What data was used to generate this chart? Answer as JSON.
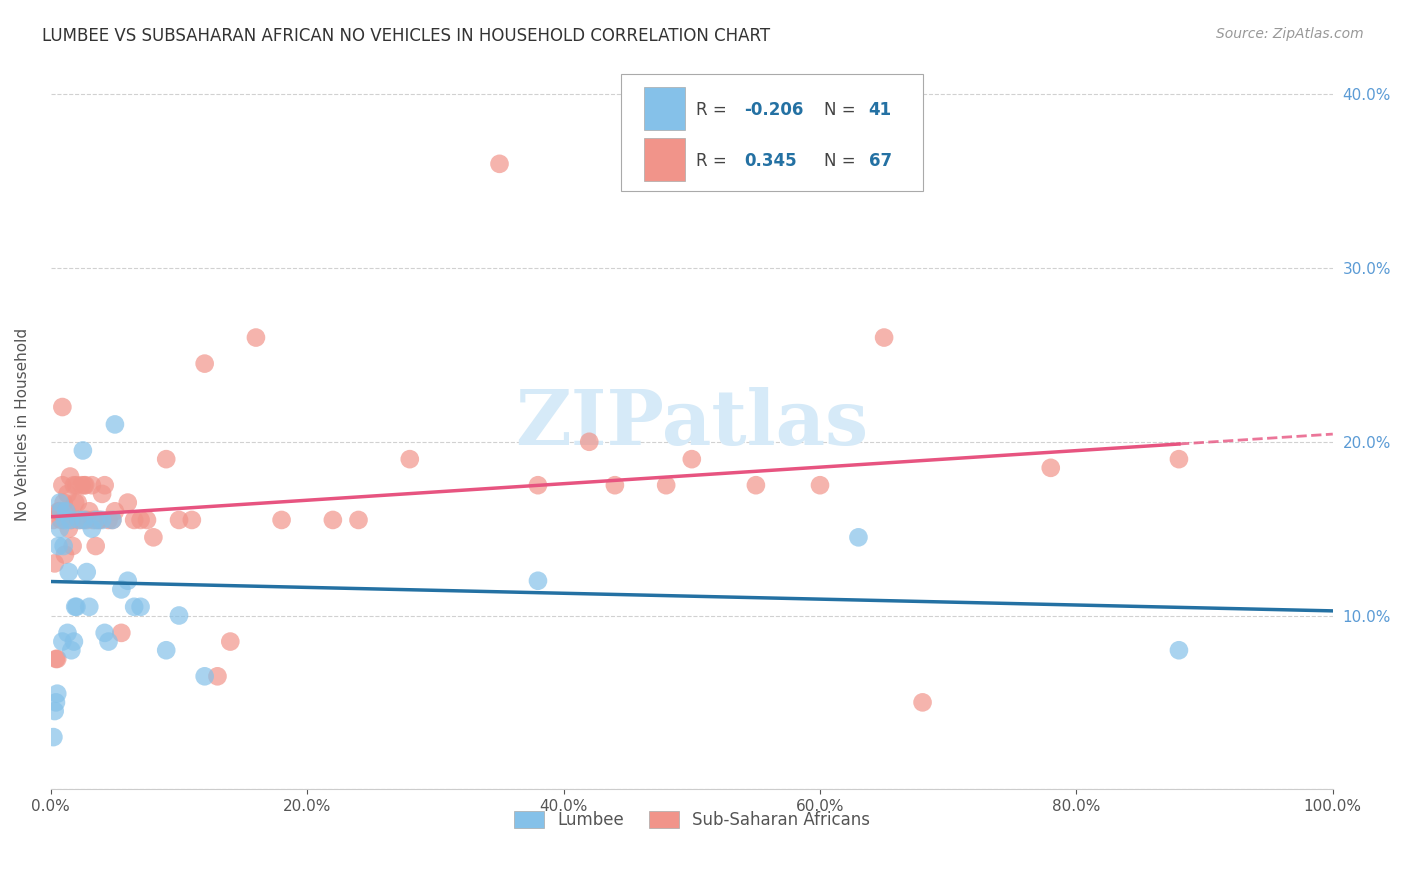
{
  "title": "LUMBEE VS SUBSAHARAN AFRICAN NO VEHICLES IN HOUSEHOLD CORRELATION CHART",
  "source": "Source: ZipAtlas.com",
  "ylabel": "No Vehicles in Household",
  "xlim": [
    0,
    1.0
  ],
  "ylim": [
    0,
    0.42
  ],
  "xticks": [
    0.0,
    0.2,
    0.4,
    0.6,
    0.8,
    1.0
  ],
  "yticks": [
    0.0,
    0.1,
    0.2,
    0.3,
    0.4
  ],
  "xtick_labels": [
    "0.0%",
    "20.0%",
    "40.0%",
    "60.0%",
    "80.0%",
    "100.0%"
  ],
  "ytick_labels_right": [
    "",
    "10.0%",
    "20.0%",
    "30.0%",
    "40.0%"
  ],
  "lumbee_color": "#85C1E9",
  "subsaharan_color": "#F1948A",
  "lumbee_line_color": "#2471A3",
  "subsaharan_line_color": "#E75480",
  "lumbee_R": -0.206,
  "lumbee_N": 41,
  "subsaharan_R": 0.345,
  "subsaharan_N": 67,
  "watermark": "ZIPatlas",
  "watermark_color": "#D6EAF8",
  "legend_label_1": "Lumbee",
  "legend_label_2": "Sub-Saharan Africans",
  "lumbee_x": [
    0.002,
    0.003,
    0.004,
    0.005,
    0.006,
    0.007,
    0.007,
    0.008,
    0.009,
    0.01,
    0.011,
    0.012,
    0.013,
    0.014,
    0.015,
    0.016,
    0.018,
    0.019,
    0.02,
    0.022,
    0.025,
    0.026,
    0.028,
    0.03,
    0.032,
    0.035,
    0.04,
    0.042,
    0.045,
    0.048,
    0.05,
    0.055,
    0.06,
    0.065,
    0.07,
    0.09,
    0.1,
    0.12,
    0.38,
    0.63,
    0.88
  ],
  "lumbee_y": [
    0.03,
    0.045,
    0.05,
    0.055,
    0.14,
    0.15,
    0.165,
    0.16,
    0.085,
    0.14,
    0.155,
    0.16,
    0.09,
    0.125,
    0.155,
    0.08,
    0.085,
    0.105,
    0.105,
    0.155,
    0.195,
    0.155,
    0.125,
    0.105,
    0.15,
    0.155,
    0.155,
    0.09,
    0.085,
    0.155,
    0.21,
    0.115,
    0.12,
    0.105,
    0.105,
    0.08,
    0.1,
    0.065,
    0.12,
    0.145,
    0.08
  ],
  "subsaharan_x": [
    0.002,
    0.003,
    0.004,
    0.005,
    0.006,
    0.007,
    0.008,
    0.009,
    0.009,
    0.01,
    0.011,
    0.012,
    0.013,
    0.014,
    0.015,
    0.016,
    0.017,
    0.018,
    0.019,
    0.02,
    0.021,
    0.022,
    0.024,
    0.025,
    0.026,
    0.027,
    0.028,
    0.03,
    0.032,
    0.033,
    0.035,
    0.037,
    0.038,
    0.04,
    0.042,
    0.045,
    0.048,
    0.05,
    0.055,
    0.06,
    0.065,
    0.07,
    0.075,
    0.08,
    0.09,
    0.1,
    0.11,
    0.12,
    0.13,
    0.14,
    0.16,
    0.18,
    0.22,
    0.24,
    0.28,
    0.35,
    0.38,
    0.42,
    0.44,
    0.48,
    0.5,
    0.55,
    0.6,
    0.65,
    0.68,
    0.78,
    0.88
  ],
  "subsaharan_y": [
    0.155,
    0.13,
    0.075,
    0.075,
    0.16,
    0.16,
    0.155,
    0.175,
    0.22,
    0.165,
    0.135,
    0.16,
    0.17,
    0.15,
    0.18,
    0.155,
    0.14,
    0.175,
    0.165,
    0.175,
    0.165,
    0.155,
    0.175,
    0.155,
    0.175,
    0.175,
    0.155,
    0.16,
    0.175,
    0.155,
    0.14,
    0.155,
    0.155,
    0.17,
    0.175,
    0.155,
    0.155,
    0.16,
    0.09,
    0.165,
    0.155,
    0.155,
    0.155,
    0.145,
    0.19,
    0.155,
    0.155,
    0.245,
    0.065,
    0.085,
    0.26,
    0.155,
    0.155,
    0.155,
    0.19,
    0.36,
    0.175,
    0.2,
    0.175,
    0.175,
    0.19,
    0.175,
    0.175,
    0.26,
    0.05,
    0.185,
    0.19
  ]
}
